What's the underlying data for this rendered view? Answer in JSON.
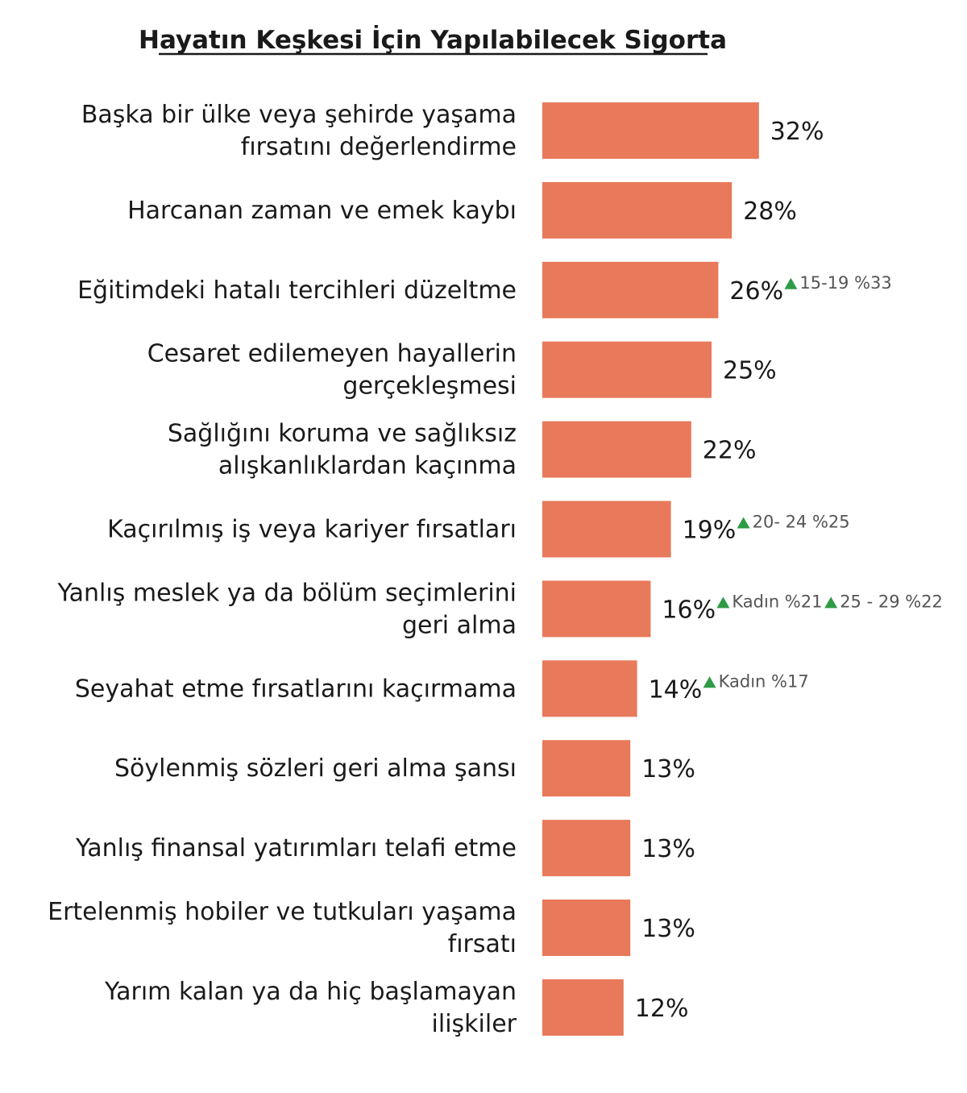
{
  "chart_data": {
    "type": "bar",
    "orientation": "horizontal",
    "title": "Hayatın Keşkesi İçin Yapılabilecek Sigorta",
    "bar_color": "#E8795A",
    "note_marker_color": "#2E9B45",
    "categories": [
      [
        "Başka bir ülke veya şehirde yaşama",
        "fırsatını değerlendirme"
      ],
      [
        "Harcanan zaman ve emek kaybı"
      ],
      [
        "Eğitimdeki hatalı tercihleri düzeltme"
      ],
      [
        "Cesaret edilemeyen hayallerin",
        "gerçekleşmesi"
      ],
      [
        "Sağlığını koruma ve sağlıksız",
        "alışkanlıklardan kaçınma"
      ],
      [
        "Kaçırılmış iş veya kariyer fırsatları"
      ],
      [
        "Yanlış meslek ya da bölüm seçimlerini",
        "geri alma"
      ],
      [
        "Seyahat etme fırsatlarını kaçırmama"
      ],
      [
        "Söylenmiş sözleri geri alma şansı"
      ],
      [
        "Yanlış finansal yatırımları telafi etme"
      ],
      [
        "Ertelenmiş hobiler ve tutkuları yaşama",
        "fırsatı"
      ],
      [
        "Yarım kalan ya da hiç başlamayan",
        "ilişkiler"
      ]
    ],
    "values": [
      32,
      28,
      26,
      25,
      22,
      19,
      16,
      14,
      13,
      13,
      13,
      12
    ],
    "value_labels": [
      "32%",
      "28%",
      "26%",
      "25%",
      "22%",
      "19%",
      "16%",
      "14%",
      "13%",
      "13%",
      "13%",
      "12%"
    ],
    "annotations": [
      [],
      [],
      [
        "15-19 %33"
      ],
      [],
      [],
      [
        "20- 24 %25"
      ],
      [
        "Kadın %21",
        "25 - 29 %22"
      ],
      [
        "Kadın %17"
      ],
      [],
      [],
      [],
      []
    ],
    "legend": "none",
    "grid": false
  }
}
